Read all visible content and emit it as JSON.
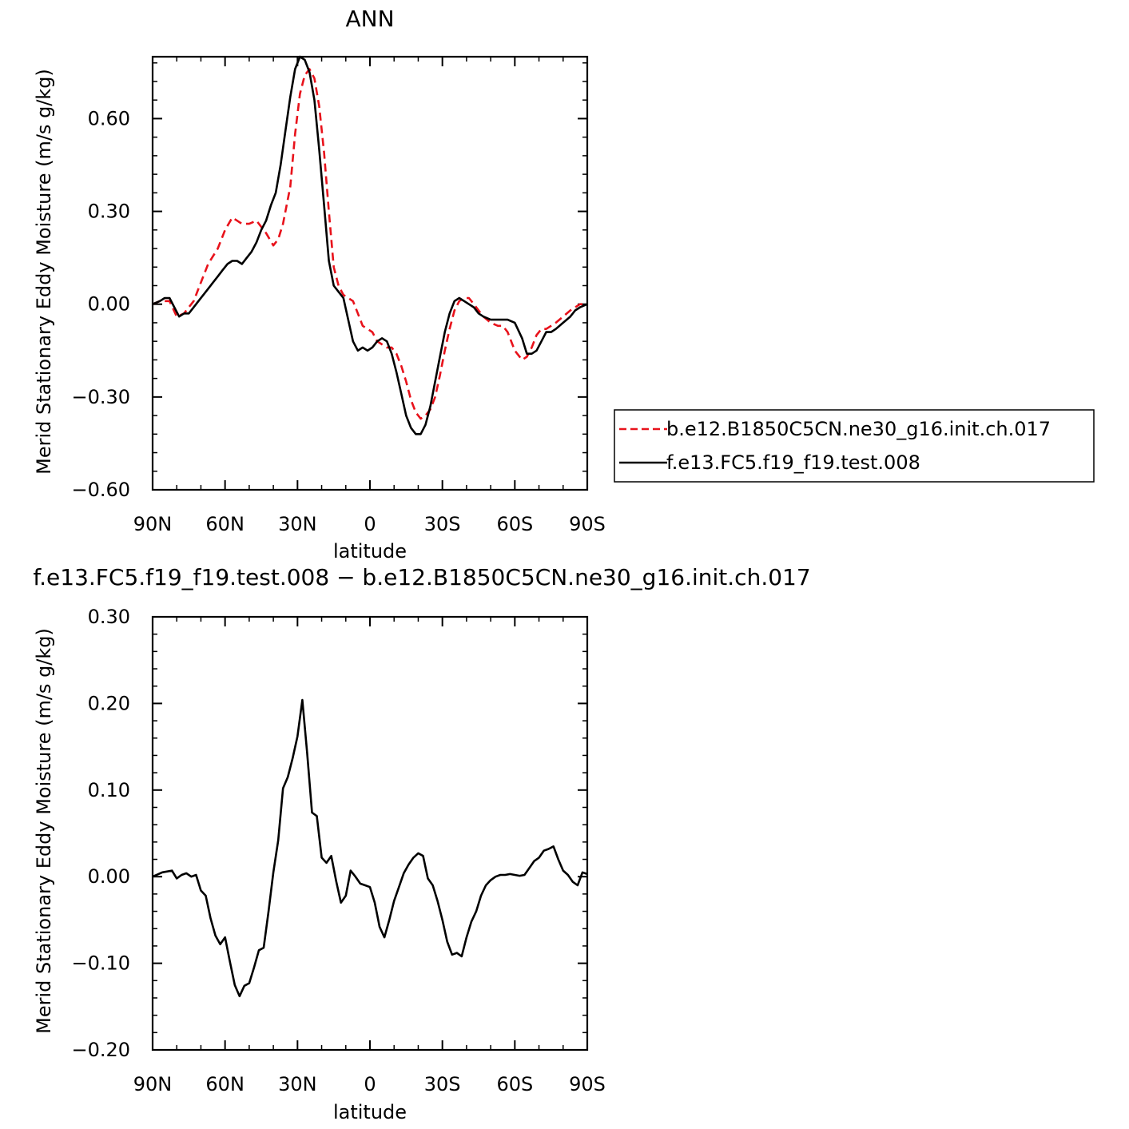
{
  "chart_data": [
    {
      "type": "line",
      "title": "ANN",
      "xlabel": "latitude",
      "ylabel": "Merid Stationary Eddy Moisture (m/s g/kg)",
      "xlim": [
        90,
        -90
      ],
      "ylim": [
        -0.6,
        0.8
      ],
      "xticks": [
        90,
        60,
        30,
        0,
        -30,
        -60,
        -90
      ],
      "xticklabels": [
        "90N",
        "60N",
        "30N",
        "0",
        "30S",
        "60S",
        "90S"
      ],
      "yticks": [
        -0.6,
        -0.3,
        0.0,
        0.3,
        0.6
      ],
      "yticklabels": [
        "−0.60",
        "−0.30",
        "0.00",
        "0.30",
        "0.60"
      ],
      "legend": "right",
      "series": [
        {
          "name": "b.e12.B1850C5CN.ne30_g16.init.ch.017",
          "color": "#e8121b",
          "dash": "dashed",
          "x": [
            90,
            87,
            83,
            80,
            77,
            73,
            70,
            67,
            63,
            60,
            57,
            55,
            53,
            50,
            47,
            45,
            43,
            40,
            38,
            36,
            33,
            31,
            29,
            27,
            25,
            23,
            21,
            19,
            17,
            15,
            13,
            11,
            9,
            7,
            5,
            3,
            1,
            -1,
            -3,
            -5,
            -7,
            -9,
            -11,
            -13,
            -15,
            -17,
            -19,
            -21,
            -23,
            -25,
            -27,
            -29,
            -31,
            -33,
            -35,
            -37,
            -39,
            -41,
            -43,
            -45,
            -47,
            -50,
            -53,
            -55,
            -57,
            -60,
            -63,
            -65,
            -67,
            -69,
            -71,
            -73,
            -75,
            -77,
            -80,
            -83,
            -85,
            -87,
            -90
          ],
          "y": [
            0.0,
            0.01,
            0.01,
            -0.04,
            -0.03,
            0.01,
            0.07,
            0.13,
            0.18,
            0.24,
            0.28,
            0.27,
            0.26,
            0.26,
            0.27,
            0.25,
            0.23,
            0.19,
            0.21,
            0.26,
            0.38,
            0.55,
            0.68,
            0.74,
            0.76,
            0.73,
            0.64,
            0.49,
            0.3,
            0.12,
            0.06,
            0.03,
            0.02,
            0.01,
            -0.03,
            -0.07,
            -0.08,
            -0.09,
            -0.12,
            -0.13,
            -0.14,
            -0.14,
            -0.16,
            -0.2,
            -0.25,
            -0.31,
            -0.35,
            -0.37,
            -0.36,
            -0.34,
            -0.3,
            -0.23,
            -0.15,
            -0.08,
            -0.02,
            0.01,
            0.02,
            0.02,
            0.0,
            -0.02,
            -0.04,
            -0.06,
            -0.07,
            -0.07,
            -0.09,
            -0.15,
            -0.18,
            -0.17,
            -0.14,
            -0.1,
            -0.08,
            -0.08,
            -0.07,
            -0.06,
            -0.04,
            -0.02,
            -0.01,
            0.0,
            0.0
          ]
        },
        {
          "name": "f.e13.FC5.f19_f19.test.008",
          "color": "#000000",
          "dash": "solid",
          "x": [
            90,
            87,
            85,
            83,
            81,
            79,
            77,
            75,
            73,
            71,
            69,
            67,
            65,
            63,
            61,
            59,
            57,
            55,
            53,
            51,
            49,
            47,
            45,
            43,
            41,
            39,
            37,
            35,
            33,
            31,
            29,
            27,
            25,
            23,
            21,
            19,
            17,
            15,
            13,
            11,
            9,
            7,
            5,
            3,
            1,
            -1,
            -3,
            -5,
            -7,
            -9,
            -11,
            -13,
            -15,
            -17,
            -19,
            -21,
            -23,
            -25,
            -27,
            -29,
            -31,
            -33,
            -35,
            -37,
            -39,
            -41,
            -43,
            -45,
            -47,
            -50,
            -53,
            -55,
            -57,
            -60,
            -63,
            -65,
            -67,
            -69,
            -71,
            -73,
            -75,
            -77,
            -80,
            -83,
            -85,
            -87,
            -90
          ],
          "y": [
            0.0,
            0.01,
            0.02,
            0.02,
            -0.01,
            -0.04,
            -0.03,
            -0.03,
            -0.01,
            0.01,
            0.03,
            0.05,
            0.07,
            0.09,
            0.11,
            0.13,
            0.14,
            0.14,
            0.13,
            0.15,
            0.17,
            0.2,
            0.24,
            0.27,
            0.32,
            0.36,
            0.45,
            0.56,
            0.67,
            0.76,
            0.8,
            0.79,
            0.75,
            0.66,
            0.5,
            0.32,
            0.14,
            0.06,
            0.04,
            0.02,
            -0.05,
            -0.12,
            -0.15,
            -0.14,
            -0.15,
            -0.14,
            -0.12,
            -0.11,
            -0.12,
            -0.16,
            -0.22,
            -0.29,
            -0.36,
            -0.4,
            -0.42,
            -0.42,
            -0.39,
            -0.33,
            -0.25,
            -0.17,
            -0.09,
            -0.03,
            0.01,
            0.02,
            0.01,
            0.0,
            -0.01,
            -0.03,
            -0.04,
            -0.05,
            -0.05,
            -0.05,
            -0.05,
            -0.06,
            -0.11,
            -0.16,
            -0.16,
            -0.15,
            -0.12,
            -0.09,
            -0.09,
            -0.08,
            -0.06,
            -0.04,
            -0.02,
            -0.01,
            0.0
          ]
        }
      ]
    },
    {
      "type": "line",
      "title": "f.e13.FC5.f19_f19.test.008 − b.e12.B1850C5CN.ne30_g16.init.ch.017",
      "xlabel": "latitude",
      "ylabel": "Merid Stationary Eddy Moisture (m/s g/kg)",
      "xlim": [
        90,
        -90
      ],
      "ylim": [
        -0.2,
        0.3
      ],
      "xticks": [
        90,
        60,
        30,
        0,
        -30,
        -60,
        -90
      ],
      "xticklabels": [
        "90N",
        "60N",
        "30N",
        "0",
        "30S",
        "60S",
        "90S"
      ],
      "yticks": [
        -0.2,
        -0.1,
        0.0,
        0.1,
        0.2,
        0.3
      ],
      "yticklabels": [
        "−0.20",
        "−0.10",
        "0.00",
        "0.10",
        "0.20",
        "0.30"
      ],
      "series": [
        {
          "color": "#000000",
          "x": [
            90,
            86,
            82,
            80,
            78,
            76,
            74,
            72,
            70,
            68,
            66,
            64,
            62,
            60,
            58,
            56,
            54,
            52,
            50,
            48,
            46,
            44,
            42,
            40,
            38,
            36,
            34,
            32,
            30,
            28,
            26,
            24,
            22,
            20,
            18,
            16,
            14,
            12,
            10,
            8,
            6,
            4,
            2,
            0,
            -2,
            -4,
            -6,
            -8,
            -10,
            -12,
            -14,
            -16,
            -18,
            -20,
            -22,
            -24,
            -26,
            -28,
            -30,
            -32,
            -34,
            -36,
            -38,
            -40,
            -42,
            -44,
            -46,
            -48,
            -50,
            -52,
            -54,
            -56,
            -58,
            -60,
            -62,
            -64,
            -66,
            -68,
            -70,
            -72,
            -74,
            -76,
            -78,
            -80,
            -82,
            -84,
            -86,
            -88,
            -90
          ],
          "y": [
            0.0,
            0.005,
            0.007,
            -0.002,
            0.002,
            0.004,
            0.0,
            0.002,
            -0.016,
            -0.022,
            -0.048,
            -0.068,
            -0.078,
            -0.07,
            -0.098,
            -0.125,
            -0.138,
            -0.126,
            -0.123,
            -0.105,
            -0.085,
            -0.082,
            -0.04,
            0.005,
            0.042,
            0.102,
            0.115,
            0.137,
            0.162,
            0.204,
            0.143,
            0.074,
            0.07,
            0.022,
            0.016,
            0.024,
            -0.005,
            -0.03,
            -0.022,
            0.007,
            0.0,
            -0.008,
            -0.01,
            -0.012,
            -0.03,
            -0.058,
            -0.07,
            -0.05,
            -0.028,
            -0.012,
            0.004,
            0.014,
            0.022,
            0.027,
            0.024,
            -0.002,
            -0.01,
            -0.028,
            -0.05,
            -0.075,
            -0.09,
            -0.088,
            -0.092,
            -0.07,
            -0.052,
            -0.04,
            -0.022,
            -0.01,
            -0.004,
            0.0,
            0.002,
            0.002,
            0.003,
            0.002,
            0.001,
            0.002,
            0.01,
            0.018,
            0.022,
            0.03,
            0.032,
            0.035,
            0.02,
            0.007,
            0.002,
            -0.006,
            -0.01,
            0.005,
            0.003
          ]
        }
      ]
    }
  ]
}
